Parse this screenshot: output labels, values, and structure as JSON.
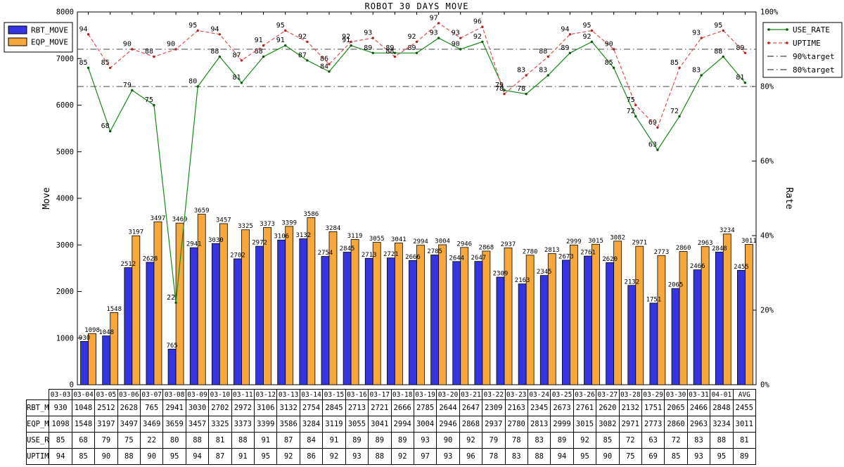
{
  "title": "ROBOT 30 DAYS MOVE",
  "axes": {
    "left_label": "Move",
    "right_label": "Rate",
    "left_ticks": [
      {
        "label": "0",
        "value": 0
      },
      {
        "label": "1000",
        "value": 1000
      },
      {
        "label": "2000",
        "value": 2000
      },
      {
        "label": "3000",
        "value": 3000
      },
      {
        "label": "4000",
        "value": 4000
      },
      {
        "label": "5000",
        "value": 5000
      },
      {
        "label": "6000",
        "value": 6000
      },
      {
        "label": "7000",
        "value": 7000
      },
      {
        "label": "8000",
        "value": 8000
      }
    ],
    "right_ticks": [
      {
        "label": "0%",
        "value": 0
      },
      {
        "label": "20%",
        "value": 20
      },
      {
        "label": "40%",
        "value": 40
      },
      {
        "label": "60%",
        "value": 60
      },
      {
        "label": "80%",
        "value": 80
      },
      {
        "label": "100%",
        "value": 100
      }
    ]
  },
  "legend_bars": [
    {
      "label": "RBT_MOVE",
      "color": "#3434e0"
    },
    {
      "label": "EQP_MOVE",
      "color": "#f8a83a"
    }
  ],
  "legend_lines": [
    {
      "label": "USE_RATE",
      "color": "#188a18",
      "dash": "",
      "markers": true,
      "marker_color": "#0a5a0a"
    },
    {
      "label": "UPTIME",
      "color": "#e05050",
      "dash": "5 3",
      "markers": true,
      "marker_color": "#b22222"
    },
    {
      "label": "90%target",
      "color": "#444444",
      "dash": "9 4 1.5 4",
      "markers": false
    },
    {
      "label": "80%target",
      "color": "#444444",
      "dash": "9 4 1.5 4",
      "markers": false
    }
  ],
  "chart_data": {
    "type": "bar+line combo",
    "title": "ROBOT 30 DAYS MOVE",
    "xlabel": "",
    "ylabel_left": "Move",
    "ylabel_right": "Rate",
    "ylim_left": [
      0,
      8000
    ],
    "ylim_right": [
      0,
      100
    ],
    "grid": "off",
    "legend_position": "bar legend top-left, line legend top-right",
    "categories": [
      "03-03",
      "03-04",
      "03-05",
      "03-06",
      "03-07",
      "03-08",
      "03-09",
      "03-10",
      "03-11",
      "03-12",
      "03-13",
      "03-14",
      "03-15",
      "03-16",
      "03-17",
      "03-18",
      "03-19",
      "03-20",
      "03-21",
      "03-22",
      "03-23",
      "03-24",
      "03-25",
      "03-26",
      "03-27",
      "03-28",
      "03-29",
      "03-30",
      "03-31",
      "04-01",
      "AVG"
    ],
    "series": [
      {
        "name": "RBT_MOVE",
        "type": "bar",
        "axis": "left",
        "color": "#3434e0",
        "values": [
          930,
          1048,
          2512,
          2628,
          765,
          2941,
          3030,
          2702,
          2972,
          3106,
          3132,
          2754,
          2845,
          2713,
          2721,
          2666,
          2785,
          2644,
          2647,
          2309,
          2163,
          2345,
          2673,
          2761,
          2620,
          2132,
          1751,
          2065,
          2466,
          2848,
          2455
        ]
      },
      {
        "name": "EQP_MOVE",
        "type": "bar",
        "axis": "left",
        "color": "#f8a83a",
        "values": [
          1098,
          1548,
          3197,
          3497,
          3469,
          3659,
          3457,
          3325,
          3373,
          3399,
          3586,
          3284,
          3119,
          3055,
          3041,
          2994,
          3004,
          2946,
          2868,
          2937,
          2780,
          2813,
          2999,
          3015,
          3082,
          2971,
          2773,
          2860,
          2963,
          3234,
          3011
        ]
      },
      {
        "name": "USE_RATE",
        "type": "line",
        "axis": "right",
        "unit": "%",
        "color": "#188a18",
        "dash": "",
        "marker_color": "#0a5a0a",
        "values": [
          85,
          68,
          79,
          75,
          22,
          80,
          88,
          81,
          88,
          91,
          87,
          84,
          91,
          89,
          89,
          89,
          93,
          90,
          92,
          79,
          78,
          83,
          89,
          92,
          85,
          72,
          63,
          72,
          83,
          88,
          81
        ]
      },
      {
        "name": "UPTIME",
        "type": "line",
        "axis": "right",
        "unit": "%",
        "color": "#e05050",
        "dash": "5 3",
        "marker_color": "#b22222",
        "values": [
          94,
          85,
          90,
          88,
          90,
          95,
          94,
          87,
          91,
          95,
          92,
          86,
          92,
          93,
          88,
          92,
          97,
          93,
          96,
          78,
          83,
          88,
          94,
          95,
          90,
          75,
          69,
          85,
          93,
          95,
          89
        ]
      }
    ],
    "target_lines": [
      {
        "label": "90%target",
        "value": 90
      },
      {
        "label": "80%target",
        "value": 80
      }
    ]
  },
  "table": {
    "rows": [
      {
        "label": "RBT_MOVE",
        "series": 0
      },
      {
        "label": "EQP_MOVE",
        "series": 1
      },
      {
        "label": "USE_RATE (%)",
        "series": 2
      },
      {
        "label": "UPTIME (%)",
        "series": 3
      }
    ]
  }
}
